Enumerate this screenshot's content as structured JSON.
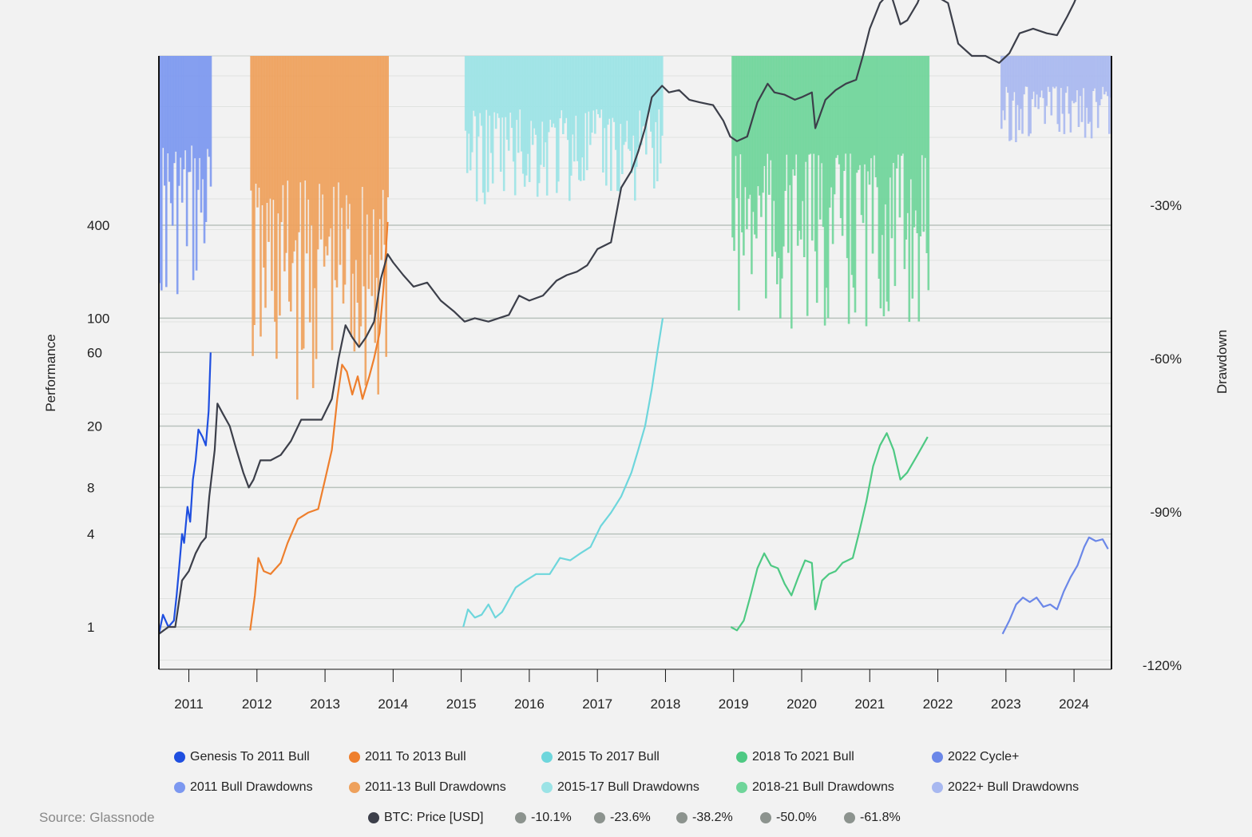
{
  "chart_data": {
    "type": "line",
    "xlabel": "",
    "ylabel": "Performance",
    "y2label": "Drawdown",
    "x_ticks": [
      "2011",
      "2012",
      "2013",
      "2014",
      "2015",
      "2016",
      "2017",
      "2018",
      "2019",
      "2020",
      "2021",
      "2022",
      "2023",
      "2024"
    ],
    "x_range": [
      2010.56,
      2024.55
    ],
    "y_scale": "log",
    "y_ticks": [
      1,
      4,
      8,
      20,
      60,
      100,
      400
    ],
    "y2_ticks": [
      "-30%",
      "-60%",
      "-90%",
      "-120%"
    ],
    "y2_range": [
      0,
      -120
    ],
    "grid": true,
    "legend_position": "bottom",
    "series": [
      {
        "name": "Genesis To 2011 Bull",
        "color": "#1f4fe0",
        "style": "line",
        "points": [
          [
            2010.56,
            0.9
          ],
          [
            2010.62,
            1.2
          ],
          [
            2010.7,
            1.0
          ],
          [
            2010.78,
            1.1
          ],
          [
            2010.82,
            1.6
          ],
          [
            2010.86,
            2.5
          ],
          [
            2010.9,
            4.0
          ],
          [
            2010.93,
            3.5
          ],
          [
            2010.98,
            6
          ],
          [
            2011.02,
            4.8
          ],
          [
            2011.06,
            9
          ],
          [
            2011.1,
            12
          ],
          [
            2011.14,
            19
          ],
          [
            2011.2,
            17
          ],
          [
            2011.25,
            15
          ],
          [
            2011.29,
            25
          ],
          [
            2011.32,
            60
          ]
        ]
      },
      {
        "name": "2011 To 2013 Bull",
        "color": "#ee7f2d",
        "style": "line",
        "points": [
          [
            2011.9,
            0.95
          ],
          [
            2011.97,
            1.6
          ],
          [
            2012.02,
            2.8
          ],
          [
            2012.1,
            2.3
          ],
          [
            2012.2,
            2.2
          ],
          [
            2012.35,
            2.6
          ],
          [
            2012.45,
            3.5
          ],
          [
            2012.6,
            5
          ],
          [
            2012.75,
            5.5
          ],
          [
            2012.9,
            5.8
          ],
          [
            2013.0,
            9
          ],
          [
            2013.1,
            14
          ],
          [
            2013.18,
            30
          ],
          [
            2013.25,
            50
          ],
          [
            2013.32,
            45
          ],
          [
            2013.4,
            32
          ],
          [
            2013.48,
            42
          ],
          [
            2013.55,
            30
          ],
          [
            2013.65,
            42
          ],
          [
            2013.72,
            55
          ],
          [
            2013.8,
            80
          ],
          [
            2013.86,
            160
          ],
          [
            2013.92,
            420
          ]
        ]
      },
      {
        "name": "2015 To 2017 Bull",
        "color": "#6ed6dc",
        "style": "line",
        "points": [
          [
            2015.03,
            1.0
          ],
          [
            2015.1,
            1.3
          ],
          [
            2015.2,
            1.15
          ],
          [
            2015.3,
            1.2
          ],
          [
            2015.4,
            1.4
          ],
          [
            2015.5,
            1.15
          ],
          [
            2015.6,
            1.25
          ],
          [
            2015.7,
            1.5
          ],
          [
            2015.8,
            1.8
          ],
          [
            2015.95,
            2.0
          ],
          [
            2016.1,
            2.2
          ],
          [
            2016.3,
            2.2
          ],
          [
            2016.45,
            2.8
          ],
          [
            2016.6,
            2.7
          ],
          [
            2016.75,
            3.0
          ],
          [
            2016.9,
            3.3
          ],
          [
            2017.05,
            4.5
          ],
          [
            2017.2,
            5.5
          ],
          [
            2017.35,
            7
          ],
          [
            2017.5,
            10
          ],
          [
            2017.6,
            14
          ],
          [
            2017.7,
            20
          ],
          [
            2017.8,
            35
          ],
          [
            2017.88,
            60
          ],
          [
            2017.96,
            100
          ]
        ]
      },
      {
        "name": "2018 To 2021 Bull",
        "color": "#4ec983",
        "style": "line",
        "points": [
          [
            2018.96,
            1.0
          ],
          [
            2019.05,
            0.95
          ],
          [
            2019.15,
            1.1
          ],
          [
            2019.25,
            1.6
          ],
          [
            2019.35,
            2.4
          ],
          [
            2019.45,
            3.0
          ],
          [
            2019.55,
            2.5
          ],
          [
            2019.65,
            2.4
          ],
          [
            2019.75,
            1.9
          ],
          [
            2019.85,
            1.6
          ],
          [
            2019.95,
            2.1
          ],
          [
            2020.05,
            2.7
          ],
          [
            2020.15,
            2.6
          ],
          [
            2020.2,
            1.3
          ],
          [
            2020.3,
            2.0
          ],
          [
            2020.4,
            2.2
          ],
          [
            2020.5,
            2.3
          ],
          [
            2020.6,
            2.6
          ],
          [
            2020.75,
            2.8
          ],
          [
            2020.85,
            4.2
          ],
          [
            2020.95,
            6.5
          ],
          [
            2021.05,
            11
          ],
          [
            2021.15,
            15
          ],
          [
            2021.25,
            18
          ],
          [
            2021.35,
            14
          ],
          [
            2021.45,
            9
          ],
          [
            2021.55,
            10
          ],
          [
            2021.7,
            13
          ],
          [
            2021.85,
            17
          ]
        ]
      },
      {
        "name": "2022 Cycle+",
        "color": "#6b87e8",
        "style": "line",
        "points": [
          [
            2022.95,
            0.9
          ],
          [
            2023.05,
            1.1
          ],
          [
            2023.15,
            1.4
          ],
          [
            2023.25,
            1.55
          ],
          [
            2023.35,
            1.45
          ],
          [
            2023.45,
            1.55
          ],
          [
            2023.55,
            1.35
          ],
          [
            2023.65,
            1.4
          ],
          [
            2023.75,
            1.3
          ],
          [
            2023.85,
            1.7
          ],
          [
            2023.95,
            2.1
          ],
          [
            2024.05,
            2.5
          ],
          [
            2024.15,
            3.3
          ],
          [
            2024.22,
            3.8
          ],
          [
            2024.32,
            3.6
          ],
          [
            2024.42,
            3.7
          ],
          [
            2024.5,
            3.2
          ]
        ]
      },
      {
        "name": "BTC: Price [USD]",
        "color": "#3c3f4a",
        "style": "line",
        "points": [
          [
            2010.56,
            0.9
          ],
          [
            2010.7,
            1.0
          ],
          [
            2010.8,
            1.0
          ],
          [
            2010.9,
            2.0
          ],
          [
            2011.0,
            2.3
          ],
          [
            2011.1,
            3.0
          ],
          [
            2011.18,
            3.5
          ],
          [
            2011.25,
            3.8
          ],
          [
            2011.3,
            7
          ],
          [
            2011.38,
            14
          ],
          [
            2011.42,
            28
          ],
          [
            2011.5,
            24
          ],
          [
            2011.6,
            20
          ],
          [
            2011.7,
            14
          ],
          [
            2011.8,
            10
          ],
          [
            2011.88,
            8
          ],
          [
            2011.95,
            9
          ],
          [
            2012.05,
            12
          ],
          [
            2012.2,
            12
          ],
          [
            2012.35,
            13
          ],
          [
            2012.5,
            16
          ],
          [
            2012.65,
            22
          ],
          [
            2012.8,
            22
          ],
          [
            2012.95,
            22
          ],
          [
            2013.1,
            30
          ],
          [
            2013.2,
            55
          ],
          [
            2013.3,
            90
          ],
          [
            2013.4,
            75
          ],
          [
            2013.5,
            65
          ],
          [
            2013.6,
            75
          ],
          [
            2013.72,
            95
          ],
          [
            2013.82,
            180
          ],
          [
            2013.92,
            260
          ],
          [
            2014.0,
            230
          ],
          [
            2014.15,
            190
          ],
          [
            2014.3,
            160
          ],
          [
            2014.5,
            170
          ],
          [
            2014.7,
            130
          ],
          [
            2014.9,
            110
          ],
          [
            2015.05,
            95
          ],
          [
            2015.2,
            100
          ],
          [
            2015.4,
            95
          ],
          [
            2015.55,
            100
          ],
          [
            2015.7,
            105
          ],
          [
            2015.85,
            140
          ],
          [
            2016.0,
            130
          ],
          [
            2016.2,
            140
          ],
          [
            2016.4,
            175
          ],
          [
            2016.55,
            190
          ],
          [
            2016.7,
            200
          ],
          [
            2016.85,
            220
          ],
          [
            2017.0,
            280
          ],
          [
            2017.2,
            310
          ],
          [
            2017.35,
            700
          ],
          [
            2017.5,
            900
          ],
          [
            2017.6,
            1200
          ],
          [
            2017.7,
            1700
          ],
          [
            2017.8,
            2700
          ],
          [
            2017.95,
            3200
          ],
          [
            2018.05,
            2900
          ],
          [
            2018.2,
            3000
          ],
          [
            2018.35,
            2600
          ],
          [
            2018.5,
            2500
          ],
          [
            2018.7,
            2400
          ],
          [
            2018.85,
            1900
          ],
          [
            2018.95,
            1500
          ],
          [
            2019.05,
            1400
          ],
          [
            2019.2,
            1500
          ],
          [
            2019.35,
            2500
          ],
          [
            2019.5,
            3300
          ],
          [
            2019.6,
            2900
          ],
          [
            2019.75,
            2800
          ],
          [
            2019.9,
            2600
          ],
          [
            2020.0,
            2700
          ],
          [
            2020.15,
            2900
          ],
          [
            2020.2,
            1700
          ],
          [
            2020.35,
            2600
          ],
          [
            2020.5,
            3000
          ],
          [
            2020.65,
            3300
          ],
          [
            2020.8,
            3500
          ],
          [
            2020.9,
            5000
          ],
          [
            2021.0,
            7500
          ],
          [
            2021.15,
            11000
          ],
          [
            2021.3,
            13000
          ],
          [
            2021.45,
            8000
          ],
          [
            2021.55,
            8500
          ],
          [
            2021.7,
            11000
          ],
          [
            2021.85,
            16000
          ],
          [
            2022.0,
            12000
          ],
          [
            2022.15,
            11000
          ],
          [
            2022.3,
            6000
          ],
          [
            2022.5,
            5000
          ],
          [
            2022.7,
            5000
          ],
          [
            2022.9,
            4500
          ],
          [
            2023.05,
            5200
          ],
          [
            2023.2,
            7000
          ],
          [
            2023.4,
            7500
          ],
          [
            2023.6,
            7000
          ],
          [
            2023.75,
            6800
          ],
          [
            2023.9,
            9000
          ],
          [
            2024.0,
            11000
          ],
          [
            2024.15,
            16000
          ],
          [
            2024.3,
            17000
          ],
          [
            2024.4,
            15000
          ],
          [
            2024.5,
            14000
          ]
        ]
      }
    ],
    "drawdown_bands": [
      {
        "name": "2011 Bull Drawdowns",
        "color": "#7c98f0",
        "range": [
          2010.56,
          2011.33
        ],
        "max_depth_pct": -50
      },
      {
        "name": "2011-13 Bull Drawdowns",
        "color": "#eea15c",
        "range": [
          2011.9,
          2013.93
        ],
        "max_depth_pct": -70
      },
      {
        "name": "2015-17 Bull Drawdowns",
        "color": "#9be3e6",
        "range": [
          2015.05,
          2017.96
        ],
        "max_depth_pct": -30
      },
      {
        "name": "2018-21 Bull Drawdowns",
        "color": "#6fd59a",
        "range": [
          2018.97,
          2021.87
        ],
        "max_depth_pct": -55
      },
      {
        "name": "2022+ Bull Drawdowns",
        "color": "#a8b8f0",
        "range": [
          2022.92,
          2024.55
        ],
        "max_depth_pct": -17
      }
    ],
    "levels": [
      {
        "name": "-10.1%",
        "color": "#8c938e"
      },
      {
        "name": "-23.6%",
        "color": "#8c938e"
      },
      {
        "name": "-38.2%",
        "color": "#8c938e"
      },
      {
        "name": "-50.0%",
        "color": "#8c938e"
      },
      {
        "name": "-61.8%",
        "color": "#8c938e"
      }
    ]
  },
  "legend": [
    {
      "label": "Genesis To 2011 Bull",
      "color": "#1f4fe0"
    },
    {
      "label": "2011 To 2013 Bull",
      "color": "#ee7f2d"
    },
    {
      "label": "2015 To 2017 Bull",
      "color": "#6ed6dc"
    },
    {
      "label": "2018 To 2021 Bull",
      "color": "#4ec983"
    },
    {
      "label": "2022 Cycle+",
      "color": "#6b87e8"
    },
    {
      "label": "2011 Bull Drawdowns",
      "color": "#7c98f0"
    },
    {
      "label": "2011-13 Bull Drawdowns",
      "color": "#eea15c"
    },
    {
      "label": "2015-17 Bull Drawdowns",
      "color": "#9be3e6"
    },
    {
      "label": "2018-21 Bull Drawdowns",
      "color": "#6fd59a"
    },
    {
      "label": "2022+ Bull Drawdowns",
      "color": "#a8b8f0"
    },
    {
      "label": "BTC: Price [USD]",
      "color": "#3c3f4a"
    },
    {
      "label": "-10.1%",
      "color": "#8c938e"
    },
    {
      "label": "-23.6%",
      "color": "#8c938e"
    },
    {
      "label": "-38.2%",
      "color": "#8c938e"
    },
    {
      "label": "-50.0%",
      "color": "#8c938e"
    },
    {
      "label": "-61.8%",
      "color": "#8c938e"
    }
  ],
  "source": "Source: Glassnode"
}
